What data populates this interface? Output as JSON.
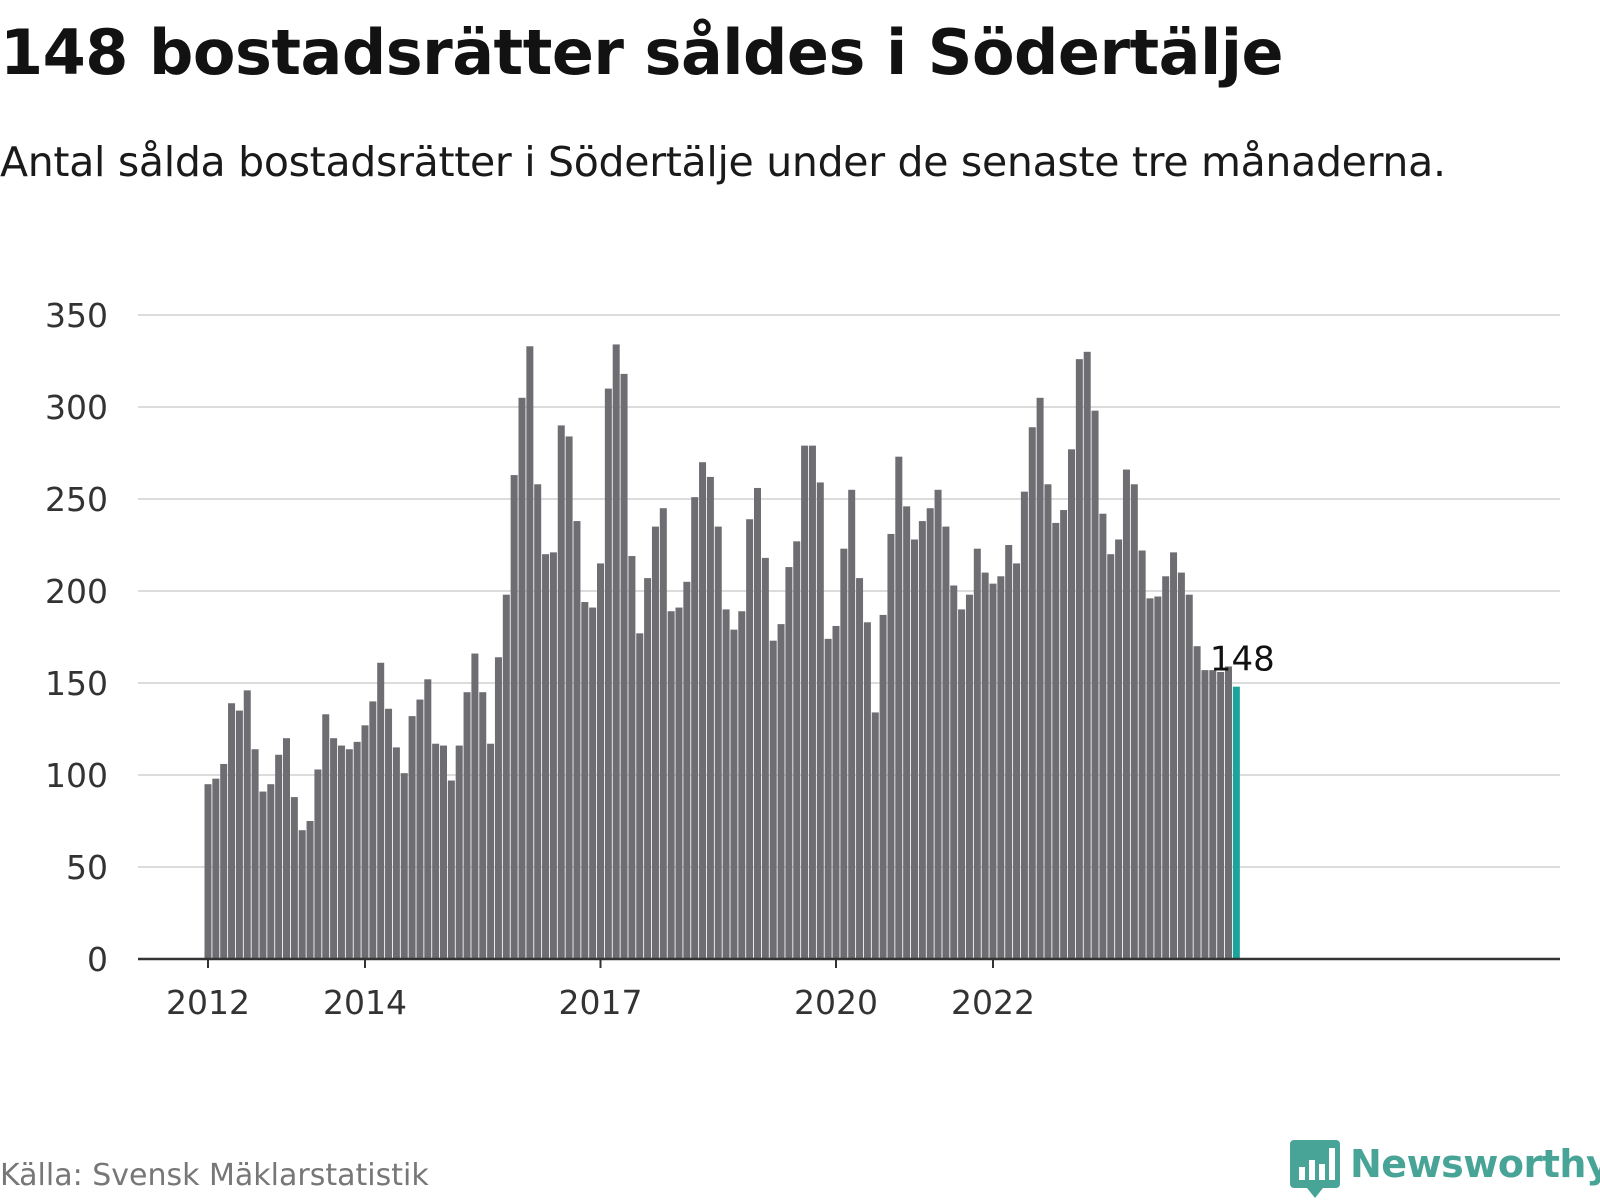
{
  "title": "148 bostadsrätter såldes i Södertälje",
  "subtitle": "Antal sålda bostadsrätter i Södertälje under de senaste tre månaderna.",
  "source": "Källa: Svensk Mäklarstatistik",
  "brand": {
    "name": "Newsworthy",
    "icon": "newsworthy-chart-logo-icon"
  },
  "colors": {
    "bar": "#6d6d72",
    "highlight": "#1ba39c",
    "grid": "#dcdcdc",
    "axis": "#333333",
    "brand": "#48a497"
  },
  "chart_data": {
    "type": "bar",
    "ylim": [
      0,
      350
    ],
    "yticks": [
      0,
      50,
      100,
      150,
      200,
      250,
      300,
      350
    ],
    "grid": true,
    "xticks": [
      {
        "label": "2012",
        "index": 0
      },
      {
        "label": "2014",
        "index": 20
      },
      {
        "label": "2017",
        "index": 50
      },
      {
        "label": "2020",
        "index": 80
      },
      {
        "label": "2022",
        "index": 100
      }
    ],
    "values": [
      95,
      98,
      106,
      139,
      135,
      146,
      114,
      91,
      95,
      111,
      120,
      88,
      70,
      75,
      103,
      133,
      120,
      116,
      114,
      118,
      127,
      140,
      161,
      136,
      115,
      101,
      132,
      141,
      152,
      117,
      116,
      97,
      116,
      145,
      166,
      145,
      117,
      164,
      198,
      263,
      305,
      333,
      258,
      220,
      221,
      290,
      284,
      238,
      194,
      191,
      215,
      310,
      334,
      318,
      219,
      177,
      207,
      235,
      245,
      189,
      191,
      205,
      251,
      270,
      262,
      235,
      190,
      179,
      189,
      239,
      256,
      218,
      173,
      182,
      213,
      227,
      279,
      279,
      259,
      174,
      181,
      223,
      255,
      207,
      183,
      134,
      187,
      231,
      273,
      246,
      228,
      238,
      245,
      255,
      235,
      203,
      190,
      198,
      223,
      210,
      204,
      208,
      225,
      215,
      254,
      289,
      305,
      258,
      237,
      244,
      277,
      326,
      330,
      298,
      242,
      220,
      228,
      266,
      258,
      222,
      196,
      197,
      208,
      221,
      210,
      198,
      170,
      157,
      157,
      156,
      159,
      148
    ],
    "highlight_index": 131,
    "annotation": "148"
  }
}
